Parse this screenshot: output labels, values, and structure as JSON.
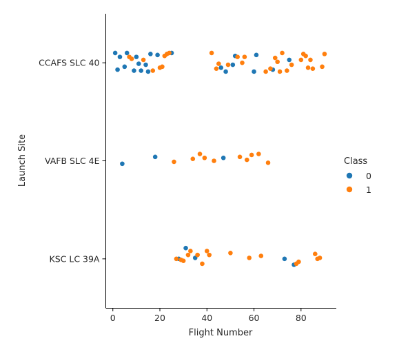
{
  "chart_data": {
    "type": "scatter",
    "kind": "stripplot",
    "title": "",
    "xlabel": "Flight Number",
    "ylabel": "Launch Site",
    "xlim": [
      -3,
      95
    ],
    "xticks": [
      0,
      20,
      40,
      60,
      80
    ],
    "y_categories": [
      "CCAFS SLC 40",
      "VAFB SLC 4E",
      "KSC LC 39A"
    ],
    "grid": false,
    "legend": {
      "title": "Class",
      "placement": "center-right",
      "entries": [
        "0",
        "1"
      ]
    },
    "colors": {
      "0": "#1f77b4",
      "1": "#ff7f0e"
    },
    "series": [
      {
        "name": "0",
        "points": [
          {
            "x": 1,
            "y": "CCAFS SLC 40",
            "jitter": -0.1
          },
          {
            "x": 2,
            "y": "CCAFS SLC 40",
            "jitter": 0.07
          },
          {
            "x": 3,
            "y": "CCAFS SLC 40",
            "jitter": -0.06
          },
          {
            "x": 5,
            "y": "CCAFS SLC 40",
            "jitter": 0.04
          },
          {
            "x": 6,
            "y": "CCAFS SLC 40",
            "jitter": -0.1
          },
          {
            "x": 9,
            "y": "CCAFS SLC 40",
            "jitter": 0.08
          },
          {
            "x": 10,
            "y": "CCAFS SLC 40",
            "jitter": -0.06
          },
          {
            "x": 11,
            "y": "CCAFS SLC 40",
            "jitter": 0.01
          },
          {
            "x": 12,
            "y": "CCAFS SLC 40",
            "jitter": 0.08
          },
          {
            "x": 14,
            "y": "CCAFS SLC 40",
            "jitter": 0.02
          },
          {
            "x": 15,
            "y": "CCAFS SLC 40",
            "jitter": 0.09
          },
          {
            "x": 16,
            "y": "CCAFS SLC 40",
            "jitter": -0.09
          },
          {
            "x": 19,
            "y": "CCAFS SLC 40",
            "jitter": -0.08
          },
          {
            "x": 25,
            "y": "CCAFS SLC 40",
            "jitter": -0.1
          },
          {
            "x": 46,
            "y": "CCAFS SLC 40",
            "jitter": 0.05
          },
          {
            "x": 48,
            "y": "CCAFS SLC 40",
            "jitter": 0.09
          },
          {
            "x": 51,
            "y": "CCAFS SLC 40",
            "jitter": 0.02
          },
          {
            "x": 52,
            "y": "CCAFS SLC 40",
            "jitter": -0.07
          },
          {
            "x": 60,
            "y": "CCAFS SLC 40",
            "jitter": 0.09
          },
          {
            "x": 61,
            "y": "CCAFS SLC 40",
            "jitter": -0.08
          },
          {
            "x": 68,
            "y": "CCAFS SLC 40",
            "jitter": 0.07
          },
          {
            "x": 75,
            "y": "CCAFS SLC 40",
            "jitter": -0.03
          },
          {
            "x": 4,
            "y": "VAFB SLC 4E",
            "jitter": 0.03
          },
          {
            "x": 18,
            "y": "VAFB SLC 4E",
            "jitter": -0.04
          },
          {
            "x": 47,
            "y": "VAFB SLC 4E",
            "jitter": -0.03
          },
          {
            "x": 28,
            "y": "KSC LC 39A",
            "jitter": 0.0
          },
          {
            "x": 31,
            "y": "KSC LC 39A",
            "jitter": -0.11
          },
          {
            "x": 35,
            "y": "KSC LC 39A",
            "jitter": -0.01
          },
          {
            "x": 73,
            "y": "KSC LC 39A",
            "jitter": 0.0
          },
          {
            "x": 77,
            "y": "KSC LC 39A",
            "jitter": 0.06
          }
        ]
      },
      {
        "name": "1",
        "points": [
          {
            "x": 7,
            "y": "CCAFS SLC 40",
            "jitter": -0.06
          },
          {
            "x": 8,
            "y": "CCAFS SLC 40",
            "jitter": -0.04
          },
          {
            "x": 13,
            "y": "CCAFS SLC 40",
            "jitter": -0.03
          },
          {
            "x": 17,
            "y": "CCAFS SLC 40",
            "jitter": 0.08
          },
          {
            "x": 20,
            "y": "CCAFS SLC 40",
            "jitter": 0.05
          },
          {
            "x": 21,
            "y": "CCAFS SLC 40",
            "jitter": 0.04
          },
          {
            "x": 22,
            "y": "CCAFS SLC 40",
            "jitter": -0.07
          },
          {
            "x": 23,
            "y": "CCAFS SLC 40",
            "jitter": -0.09
          },
          {
            "x": 24,
            "y": "CCAFS SLC 40",
            "jitter": -0.1
          },
          {
            "x": 42,
            "y": "CCAFS SLC 40",
            "jitter": -0.1
          },
          {
            "x": 44,
            "y": "CCAFS SLC 40",
            "jitter": 0.06
          },
          {
            "x": 45,
            "y": "CCAFS SLC 40",
            "jitter": 0.01
          },
          {
            "x": 49,
            "y": "CCAFS SLC 40",
            "jitter": 0.02
          },
          {
            "x": 53,
            "y": "CCAFS SLC 40",
            "jitter": -0.06
          },
          {
            "x": 55,
            "y": "CCAFS SLC 40",
            "jitter": 0.0
          },
          {
            "x": 56,
            "y": "CCAFS SLC 40",
            "jitter": -0.06
          },
          {
            "x": 65,
            "y": "CCAFS SLC 40",
            "jitter": 0.09
          },
          {
            "x": 67,
            "y": "CCAFS SLC 40",
            "jitter": 0.06
          },
          {
            "x": 69,
            "y": "CCAFS SLC 40",
            "jitter": -0.05
          },
          {
            "x": 70,
            "y": "CCAFS SLC 40",
            "jitter": -0.01
          },
          {
            "x": 71,
            "y": "CCAFS SLC 40",
            "jitter": 0.09
          },
          {
            "x": 72,
            "y": "CCAFS SLC 40",
            "jitter": -0.1
          },
          {
            "x": 74,
            "y": "CCAFS SLC 40",
            "jitter": 0.08
          },
          {
            "x": 76,
            "y": "CCAFS SLC 40",
            "jitter": 0.02
          },
          {
            "x": 80,
            "y": "CCAFS SLC 40",
            "jitter": -0.03
          },
          {
            "x": 81,
            "y": "CCAFS SLC 40",
            "jitter": -0.09
          },
          {
            "x": 82,
            "y": "CCAFS SLC 40",
            "jitter": -0.07
          },
          {
            "x": 83,
            "y": "CCAFS SLC 40",
            "jitter": 0.05
          },
          {
            "x": 84,
            "y": "CCAFS SLC 40",
            "jitter": -0.03
          },
          {
            "x": 85,
            "y": "CCAFS SLC 40",
            "jitter": 0.06
          },
          {
            "x": 89,
            "y": "CCAFS SLC 40",
            "jitter": 0.04
          },
          {
            "x": 90,
            "y": "CCAFS SLC 40",
            "jitter": -0.09
          },
          {
            "x": 26,
            "y": "VAFB SLC 4E",
            "jitter": 0.01
          },
          {
            "x": 34,
            "y": "VAFB SLC 4E",
            "jitter": -0.02
          },
          {
            "x": 37,
            "y": "VAFB SLC 4E",
            "jitter": -0.07
          },
          {
            "x": 39,
            "y": "VAFB SLC 4E",
            "jitter": -0.03
          },
          {
            "x": 43,
            "y": "VAFB SLC 4E",
            "jitter": 0.0
          },
          {
            "x": 54,
            "y": "VAFB SLC 4E",
            "jitter": -0.04
          },
          {
            "x": 57,
            "y": "VAFB SLC 4E",
            "jitter": -0.01
          },
          {
            "x": 59,
            "y": "VAFB SLC 4E",
            "jitter": -0.06
          },
          {
            "x": 62,
            "y": "VAFB SLC 4E",
            "jitter": -0.07
          },
          {
            "x": 66,
            "y": "VAFB SLC 4E",
            "jitter": 0.02
          },
          {
            "x": 27,
            "y": "KSC LC 39A",
            "jitter": 0.0
          },
          {
            "x": 29,
            "y": "KSC LC 39A",
            "jitter": 0.01
          },
          {
            "x": 30,
            "y": "KSC LC 39A",
            "jitter": 0.02
          },
          {
            "x": 32,
            "y": "KSC LC 39A",
            "jitter": -0.04
          },
          {
            "x": 33,
            "y": "KSC LC 39A",
            "jitter": -0.08
          },
          {
            "x": 36,
            "y": "KSC LC 39A",
            "jitter": -0.04
          },
          {
            "x": 38,
            "y": "KSC LC 39A",
            "jitter": 0.05
          },
          {
            "x": 40,
            "y": "KSC LC 39A",
            "jitter": -0.08
          },
          {
            "x": 41,
            "y": "KSC LC 39A",
            "jitter": -0.04
          },
          {
            "x": 50,
            "y": "KSC LC 39A",
            "jitter": -0.06
          },
          {
            "x": 58,
            "y": "KSC LC 39A",
            "jitter": -0.01
          },
          {
            "x": 63,
            "y": "KSC LC 39A",
            "jitter": -0.03
          },
          {
            "x": 78,
            "y": "KSC LC 39A",
            "jitter": 0.05
          },
          {
            "x": 79,
            "y": "KSC LC 39A",
            "jitter": 0.03
          },
          {
            "x": 86,
            "y": "KSC LC 39A",
            "jitter": -0.05
          },
          {
            "x": 87,
            "y": "KSC LC 39A",
            "jitter": 0.0
          },
          {
            "x": 88,
            "y": "KSC LC 39A",
            "jitter": -0.01
          }
        ]
      }
    ]
  }
}
